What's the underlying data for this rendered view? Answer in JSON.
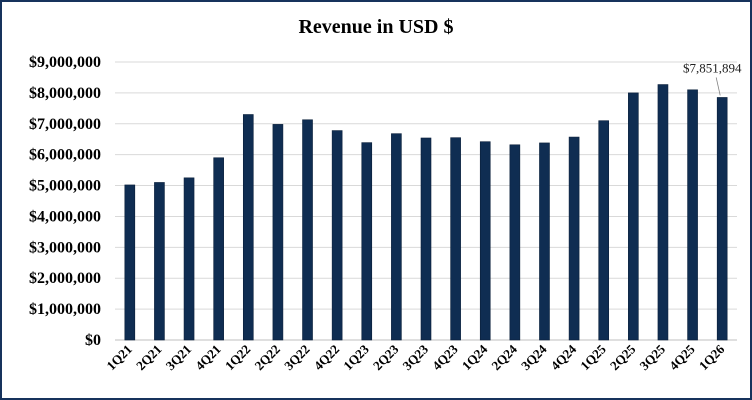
{
  "chart_data": {
    "type": "bar",
    "title": "Revenue in USD $",
    "categories": [
      "1Q21",
      "2Q21",
      "3Q21",
      "4Q21",
      "1Q22",
      "2Q22",
      "3Q22",
      "4Q22",
      "1Q23",
      "2Q23",
      "3Q23",
      "4Q23",
      "1Q24",
      "2Q24",
      "3Q24",
      "4Q24",
      "1Q25",
      "2Q25",
      "3Q25",
      "4Q25",
      "1Q26"
    ],
    "values": [
      5020000,
      5100000,
      5250000,
      5900000,
      7300000,
      6980000,
      7130000,
      6780000,
      6390000,
      6680000,
      6540000,
      6550000,
      6420000,
      6320000,
      6380000,
      6570000,
      7100000,
      8000000,
      8270000,
      8100000,
      7851894
    ],
    "ylim": [
      0,
      9000000
    ],
    "yticks": [
      0,
      1000000,
      2000000,
      3000000,
      4000000,
      5000000,
      6000000,
      7000000,
      8000000,
      9000000
    ],
    "ytick_labels": [
      "$0",
      "$1,000,000",
      "$2,000,000",
      "$3,000,000",
      "$4,000,000",
      "$5,000,000",
      "$6,000,000",
      "$7,000,000",
      "$8,000,000",
      "$9,000,000"
    ],
    "xlabel": "",
    "ylabel": "",
    "grid": true,
    "bar_color": "#0f2d52",
    "annotations": [
      {
        "category": "1Q26",
        "text": "$7,851,894"
      }
    ]
  }
}
